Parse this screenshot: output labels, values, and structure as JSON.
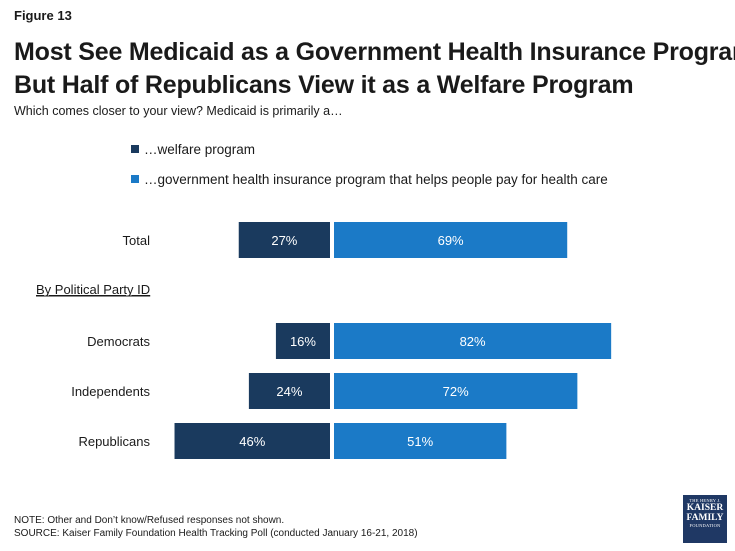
{
  "figure_label": "Figure 13",
  "title_lines": [
    "Most See Medicaid as a Government Health Insurance Program",
    "But Half of Republicans View it as a Welfare Program"
  ],
  "subtitle": "Which comes closer to your view? Medicaid is primarily a…",
  "colors": {
    "welfare": "#1a3a5e",
    "insurance": "#1b7ac7",
    "bar_text": "#ffffff"
  },
  "chart_data": {
    "type": "bar",
    "orientation": "horizontal-diverging",
    "categories": [
      "Total",
      "Democrats",
      "Independents",
      "Republicans"
    ],
    "section_label": "By Political Party ID",
    "series": [
      {
        "name": "…welfare program",
        "values": [
          27,
          16,
          24,
          46
        ],
        "labels": [
          "27%",
          "16%",
          "24%",
          "46%"
        ]
      },
      {
        "name": "…government health insurance program that helps people pay for health care",
        "values": [
          69,
          82,
          72,
          51
        ],
        "labels": [
          "69%",
          "82%",
          "72%",
          "51%"
        ]
      }
    ]
  },
  "notes": {
    "note": "NOTE: Other and Don’t know/Refused responses not shown.",
    "source": "SOURCE: Kaiser Family Foundation Health Tracking Poll (conducted January 16-21, 2018)"
  },
  "logo": {
    "line1": "THE HENRY J.",
    "line2": "KAISER",
    "line3": "FAMILY",
    "line4": "FOUNDATION"
  }
}
